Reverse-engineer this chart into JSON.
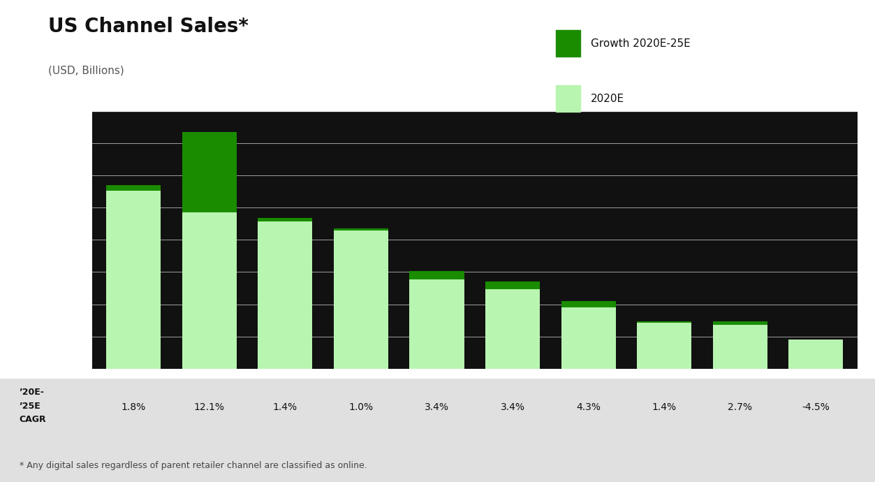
{
  "title": "US Channel Sales*",
  "subtitle": "(USD, Billions)",
  "footnote": "* Any digital sales regardless of parent retailer channel are classified as online.",
  "legend_labels": [
    "Growth 2020E-25E",
    "2020E"
  ],
  "bar_base_color": "#b8f5b0",
  "bar_growth_color": "#1a8c00",
  "cagr_label_line1": "’20E-",
  "cagr_label_line2": "’25E",
  "cagr_label_line3": "CAGR",
  "cagr_values": [
    "1.8%",
    "12.1%",
    "1.4%",
    "1.0%",
    "3.4%",
    "3.4%",
    "4.3%",
    "1.4%",
    "2.7%",
    "-4.5%"
  ],
  "base_values": [
    290,
    255,
    240,
    225,
    145,
    130,
    100,
    75,
    72,
    48
  ],
  "growth_values": [
    9,
    130,
    6,
    4,
    14,
    12,
    10,
    2,
    5,
    0
  ],
  "background_color": "#111111",
  "plot_bg_color": "#111111",
  "outer_bg_color": "#ffffff",
  "grid_color": "#ffffff",
  "title_fontsize": 20,
  "subtitle_fontsize": 11,
  "footer_area_color": "#e0e0e0",
  "title_color": "#111111",
  "subtitle_color": "#555555",
  "cagr_text_color": "#111111",
  "footnote_color": "#444444",
  "legend_text_color": "#111111"
}
